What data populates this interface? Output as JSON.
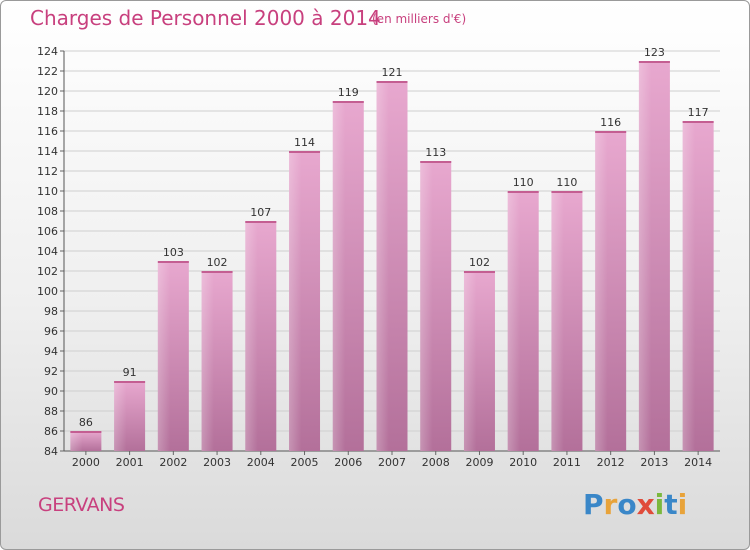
{
  "title": "Charges de Personnel 2000 à 2014",
  "subtitle": "(en milliers d'€)",
  "commune": "GERVANS",
  "logo": {
    "text": "Proxiti",
    "letters": [
      {
        "ch": "P",
        "color": "#3a87c8"
      },
      {
        "ch": "r",
        "color": "#e8a33a"
      },
      {
        "ch": "o",
        "color": "#3a87c8"
      },
      {
        "ch": "x",
        "color": "#e04b3a"
      },
      {
        "ch": "i",
        "color": "#7bb83d"
      },
      {
        "ch": "t",
        "color": "#3a87c8"
      },
      {
        "ch": "i",
        "color": "#e8a33a"
      }
    ]
  },
  "chart_data": {
    "type": "bar",
    "categories": [
      "2000",
      "2001",
      "2002",
      "2003",
      "2004",
      "2005",
      "2006",
      "2007",
      "2008",
      "2009",
      "2010",
      "2011",
      "2012",
      "2013",
      "2014"
    ],
    "values": [
      86,
      91,
      103,
      102,
      107,
      114,
      119,
      121,
      113,
      102,
      110,
      110,
      116,
      123,
      117
    ],
    "ylim": [
      84,
      124
    ],
    "yticks": [
      84,
      86,
      88,
      90,
      92,
      94,
      96,
      98,
      100,
      102,
      104,
      106,
      108,
      110,
      112,
      114,
      116,
      118,
      120,
      122,
      124
    ],
    "grid": true,
    "bar_color": "#d98ab8",
    "bar_color_dark": "#b86d98"
  }
}
